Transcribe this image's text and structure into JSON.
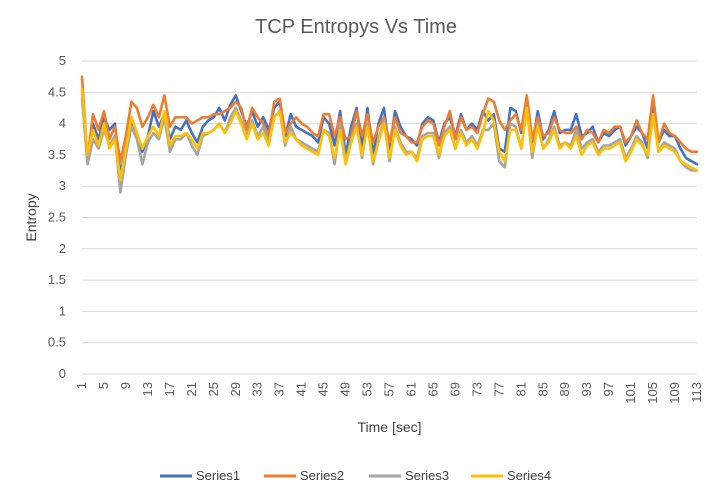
{
  "chart_data": {
    "type": "line",
    "title": "TCP Entropys Vs Time",
    "xlabel": "Time [sec]",
    "ylabel": "Entropy",
    "ylim": [
      0,
      5
    ],
    "yticks": [
      "0",
      "0.5",
      "1",
      "1.5",
      "2",
      "2.5",
      "3",
      "3.5",
      "4",
      "4.5",
      "5"
    ],
    "xticks": [
      "1",
      "5",
      "9",
      "13",
      "17",
      "21",
      "25",
      "29",
      "33",
      "37",
      "41",
      "45",
      "49",
      "53",
      "57",
      "61",
      "65",
      "69",
      "73",
      "77",
      "81",
      "85",
      "89",
      "93",
      "97",
      "101",
      "105",
      "109",
      "113"
    ],
    "grid": "horizontal",
    "legend": "bottom",
    "x": [
      1,
      2,
      3,
      4,
      5,
      6,
      7,
      8,
      9,
      10,
      11,
      12,
      13,
      14,
      15,
      16,
      17,
      18,
      19,
      20,
      21,
      22,
      23,
      24,
      25,
      26,
      27,
      28,
      29,
      30,
      31,
      32,
      33,
      34,
      35,
      36,
      37,
      38,
      39,
      40,
      41,
      42,
      43,
      44,
      45,
      46,
      47,
      48,
      49,
      50,
      51,
      52,
      53,
      54,
      55,
      56,
      57,
      58,
      59,
      60,
      61,
      62,
      63,
      64,
      65,
      66,
      67,
      68,
      69,
      70,
      71,
      72,
      73,
      74,
      75,
      76,
      77,
      78,
      79,
      80,
      81,
      82,
      83,
      84,
      85,
      86,
      87,
      88,
      89,
      90,
      91,
      92,
      93,
      94,
      95,
      96,
      97,
      98,
      99,
      100,
      101,
      102,
      103,
      104,
      105,
      106,
      107,
      108,
      109,
      110,
      111,
      112,
      113
    ],
    "series": [
      {
        "name": "Series1",
        "color": "#4472C4",
        "values": [
          4.55,
          3.4,
          4.0,
          3.75,
          4.1,
          3.9,
          4.0,
          3.2,
          3.6,
          4.05,
          3.85,
          3.55,
          3.8,
          4.2,
          3.95,
          4.15,
          3.75,
          3.95,
          3.9,
          4.05,
          3.85,
          3.7,
          3.95,
          4.05,
          4.1,
          4.25,
          4.05,
          4.3,
          4.45,
          4.2,
          3.95,
          4.2,
          3.95,
          4.1,
          3.9,
          4.25,
          4.35,
          3.8,
          4.15,
          3.95,
          3.9,
          3.85,
          3.8,
          3.7,
          4.1,
          4.0,
          3.65,
          4.2,
          3.5,
          3.95,
          4.25,
          3.6,
          4.25,
          3.5,
          4.0,
          4.25,
          3.55,
          4.2,
          3.95,
          3.8,
          3.75,
          3.65,
          4.0,
          4.1,
          4.05,
          3.7,
          4.0,
          4.1,
          3.8,
          4.15,
          3.9,
          4.0,
          3.9,
          4.2,
          4.05,
          4.15,
          3.6,
          3.55,
          4.25,
          4.2,
          3.85,
          4.4,
          3.65,
          4.2,
          3.75,
          3.9,
          4.2,
          3.85,
          3.9,
          3.9,
          4.15,
          3.8,
          3.85,
          3.95,
          3.7,
          3.85,
          3.8,
          3.9,
          3.95,
          3.65,
          3.8,
          3.95,
          3.85,
          3.6,
          4.3,
          3.7,
          3.9,
          3.8,
          3.8,
          3.6,
          3.45,
          3.4,
          3.35
        ]
      },
      {
        "name": "Series2",
        "color": "#ED7D31",
        "values": [
          4.75,
          3.45,
          4.15,
          3.9,
          4.2,
          3.75,
          3.95,
          3.4,
          3.8,
          4.35,
          4.25,
          3.95,
          4.1,
          4.3,
          4.1,
          4.45,
          3.95,
          4.1,
          4.1,
          4.1,
          4.0,
          4.05,
          4.1,
          4.1,
          4.15,
          4.15,
          4.2,
          4.25,
          4.35,
          4.25,
          3.9,
          4.25,
          4.1,
          4.0,
          3.8,
          4.35,
          4.4,
          3.85,
          4.0,
          4.1,
          4.0,
          3.95,
          3.85,
          3.8,
          4.15,
          4.15,
          3.8,
          4.1,
          3.75,
          3.8,
          4.2,
          3.8,
          4.15,
          3.7,
          3.95,
          4.1,
          3.7,
          4.1,
          3.85,
          3.8,
          3.7,
          3.7,
          3.95,
          4.05,
          4.0,
          3.65,
          3.95,
          4.2,
          3.75,
          4.1,
          3.9,
          3.95,
          3.85,
          4.15,
          4.4,
          4.35,
          4.05,
          3.9,
          4.05,
          4.15,
          3.9,
          4.45,
          3.75,
          4.1,
          3.8,
          3.85,
          4.1,
          3.9,
          3.85,
          3.85,
          3.95,
          3.75,
          3.9,
          3.85,
          3.7,
          3.9,
          3.85,
          3.95,
          3.95,
          3.7,
          3.8,
          4.05,
          3.85,
          3.75,
          4.45,
          3.7,
          4.0,
          3.85,
          3.8,
          3.7,
          3.6,
          3.55,
          3.55
        ]
      },
      {
        "name": "Series3",
        "color": "#A5A5A5",
        "values": [
          4.4,
          3.35,
          3.75,
          3.6,
          3.9,
          3.65,
          3.8,
          2.9,
          3.5,
          3.95,
          3.75,
          3.35,
          3.7,
          3.85,
          3.75,
          4.1,
          3.55,
          3.75,
          3.75,
          3.85,
          3.65,
          3.5,
          3.8,
          3.85,
          3.9,
          4.0,
          3.85,
          4.1,
          4.25,
          4.05,
          3.8,
          4.05,
          3.8,
          3.95,
          3.7,
          4.1,
          4.2,
          3.65,
          3.95,
          3.75,
          3.7,
          3.65,
          3.6,
          3.55,
          3.9,
          3.85,
          3.35,
          4.0,
          3.4,
          3.75,
          4.0,
          3.45,
          4.0,
          3.35,
          3.75,
          4.05,
          3.4,
          3.95,
          3.7,
          3.55,
          3.55,
          3.45,
          3.8,
          3.85,
          3.85,
          3.45,
          3.85,
          3.95,
          3.6,
          3.9,
          3.7,
          3.8,
          3.65,
          3.9,
          3.9,
          4.0,
          3.4,
          3.3,
          4.0,
          3.95,
          3.6,
          4.25,
          3.45,
          4.0,
          3.6,
          3.75,
          3.95,
          3.65,
          3.7,
          3.65,
          3.9,
          3.6,
          3.7,
          3.75,
          3.55,
          3.65,
          3.65,
          3.7,
          3.75,
          3.45,
          3.6,
          3.8,
          3.7,
          3.45,
          4.15,
          3.55,
          3.7,
          3.65,
          3.6,
          3.4,
          3.3,
          3.25,
          3.25
        ]
      },
      {
        "name": "Series4",
        "color": "#FFC000",
        "values": [
          4.55,
          3.5,
          3.9,
          3.65,
          4.0,
          3.6,
          3.75,
          3.1,
          3.6,
          4.1,
          3.85,
          3.6,
          3.8,
          3.95,
          3.8,
          4.2,
          3.65,
          3.8,
          3.8,
          3.85,
          3.75,
          3.6,
          3.85,
          3.85,
          3.9,
          4.0,
          3.85,
          4.0,
          4.2,
          4.0,
          3.75,
          4.0,
          3.75,
          3.85,
          3.65,
          4.1,
          4.2,
          3.7,
          3.85,
          3.75,
          3.65,
          3.6,
          3.55,
          3.5,
          3.9,
          3.8,
          3.45,
          3.9,
          3.35,
          3.7,
          3.95,
          3.5,
          3.95,
          3.4,
          3.7,
          4.0,
          3.45,
          3.9,
          3.65,
          3.5,
          3.55,
          3.4,
          3.75,
          3.8,
          3.8,
          3.5,
          3.8,
          3.9,
          3.6,
          3.85,
          3.65,
          3.75,
          3.6,
          3.85,
          4.2,
          4.05,
          3.55,
          3.4,
          3.9,
          3.9,
          3.6,
          4.25,
          3.55,
          3.95,
          3.6,
          3.7,
          3.9,
          3.6,
          3.7,
          3.6,
          3.8,
          3.5,
          3.65,
          3.7,
          3.5,
          3.6,
          3.6,
          3.65,
          3.7,
          3.4,
          3.55,
          3.75,
          3.65,
          3.5,
          4.15,
          3.55,
          3.65,
          3.6,
          3.55,
          3.4,
          3.35,
          3.3,
          3.25
        ]
      }
    ]
  }
}
